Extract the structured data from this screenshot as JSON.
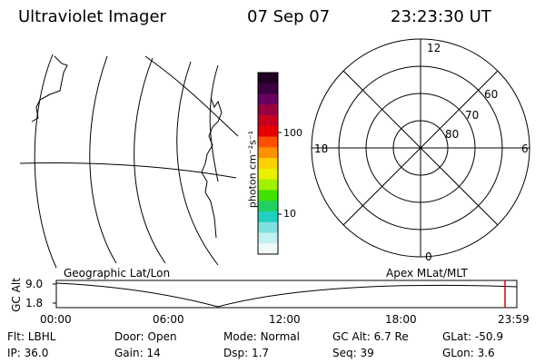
{
  "header": {
    "title": "Ultraviolet Imager",
    "date": "07 Sep 07",
    "time": "23:23:30 UT"
  },
  "geo_panel": {
    "label": "Geographic Lat/Lon"
  },
  "polar_panel": {
    "label": "Apex MLat/MLT",
    "mlt_labels": {
      "top": "12",
      "left": "18",
      "right": "6",
      "bottom": "0"
    },
    "lat_labels": [
      "60",
      "70",
      "80"
    ]
  },
  "colorbar": {
    "label": "photon cm⁻²s⁻¹",
    "ticks": [
      "100",
      "10"
    ],
    "colors": [
      "#200020",
      "#3a0040",
      "#6a0060",
      "#9a0040",
      "#c80020",
      "#e80000",
      "#ff5000",
      "#ff9000",
      "#ffd000",
      "#e8f000",
      "#a0f000",
      "#40e000",
      "#20d060",
      "#20d0c0",
      "#80e0e0",
      "#c0f0f0",
      "#f0f8f8"
    ]
  },
  "altitude_plot": {
    "ylabel": "GC Alt",
    "yticks": [
      "9.0",
      "1.8"
    ],
    "xticks": [
      "00:00",
      "06:00",
      "12:00",
      "18:00",
      "23:59"
    ]
  },
  "status": {
    "row1": [
      {
        "key": "Flt:",
        "value": "LBHL"
      },
      {
        "key": "Door:",
        "value": "Open"
      },
      {
        "key": "Mode:",
        "value": "Normal"
      },
      {
        "key": "GC Alt:",
        "value": "6.7 Re"
      },
      {
        "key": "GLat:",
        "value": "-50.9"
      }
    ],
    "row2": [
      {
        "key": "IP:",
        "value": "36.0"
      },
      {
        "key": "Gain:",
        "value": "14"
      },
      {
        "key": "Dsp:",
        "value": "1.7"
      },
      {
        "key": "Seq:",
        "value": "39"
      },
      {
        "key": "GLon:",
        "value": "3.6"
      }
    ]
  }
}
